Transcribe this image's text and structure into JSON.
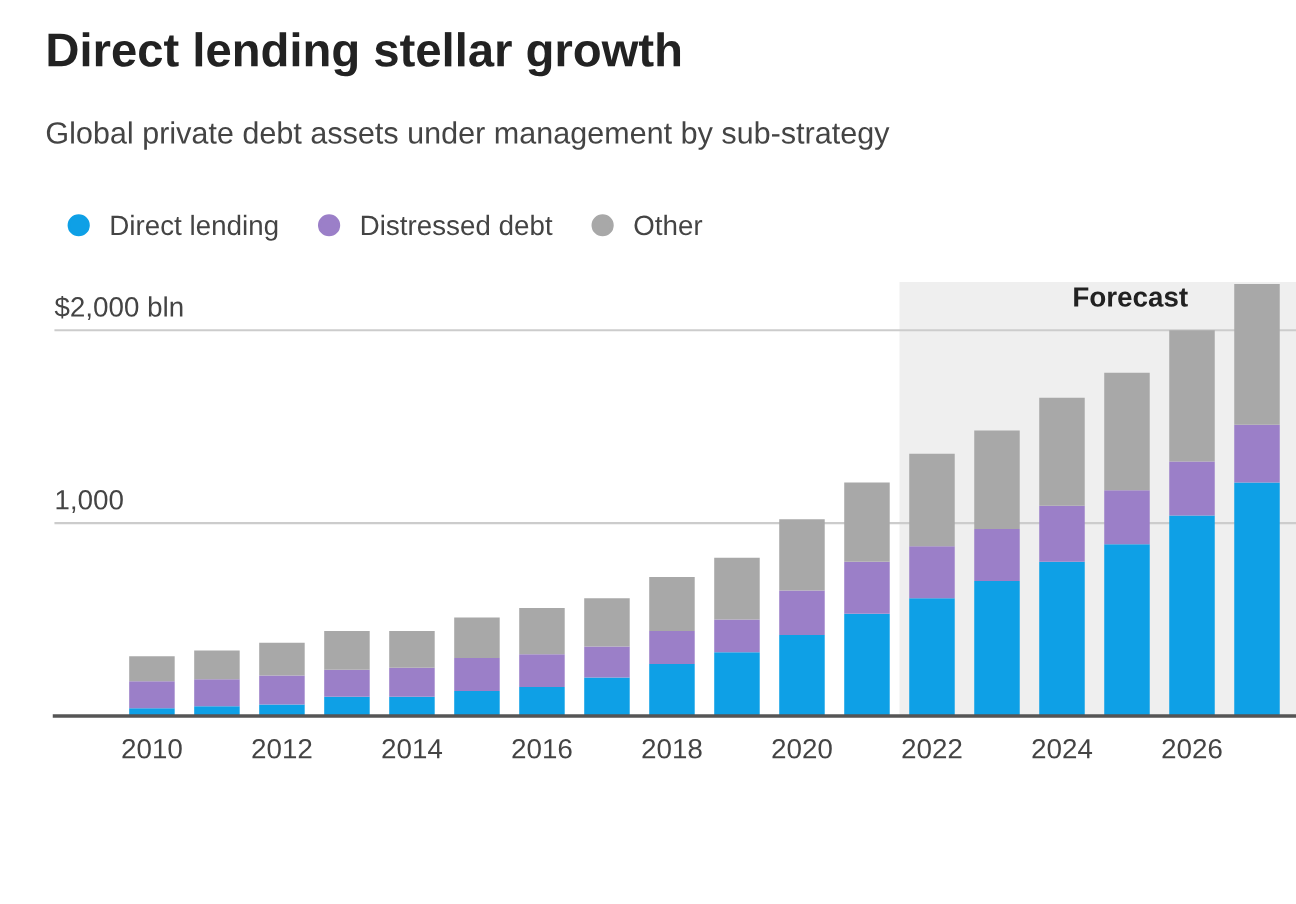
{
  "chart_data": {
    "type": "bar",
    "stacked": true,
    "title": "Direct lending stellar growth",
    "subtitle": "Global private debt assets under management by sub-strategy",
    "x": [
      2010,
      2011,
      2012,
      2013,
      2014,
      2015,
      2016,
      2017,
      2018,
      2019,
      2020,
      2021,
      2022,
      2023,
      2024,
      2025,
      2026,
      2027
    ],
    "series": [
      {
        "name": "Direct lending",
        "color": "#0ea0e6",
        "values": [
          40,
          50,
          60,
          100,
          100,
          130,
          150,
          200,
          270,
          330,
          420,
          530,
          610,
          700,
          800,
          890,
          1040,
          1210
        ]
      },
      {
        "name": "Distressed debt",
        "color": "#9b7fc8",
        "values": [
          140,
          140,
          150,
          140,
          150,
          170,
          170,
          160,
          170,
          170,
          230,
          270,
          270,
          270,
          290,
          280,
          280,
          300
        ]
      },
      {
        "name": "Other",
        "color": "#a8a8a8",
        "values": [
          130,
          150,
          170,
          200,
          190,
          210,
          240,
          250,
          280,
          320,
          370,
          410,
          480,
          510,
          560,
          610,
          680,
          730
        ]
      }
    ],
    "xlim": [
      2008.5,
      2027.6
    ],
    "xticks": [
      2010,
      2012,
      2014,
      2016,
      2018,
      2020,
      2022,
      2024,
      2026
    ],
    "ylim": [
      0,
      2250
    ],
    "yticks": [
      {
        "value": 1000,
        "label": "1,000"
      },
      {
        "value": 2000,
        "label": "$2,000 bln"
      }
    ],
    "bands": [
      {
        "axis": "x",
        "from": 2021.5,
        "to": 2027.6,
        "label": "Forecast",
        "color": "#efefef"
      }
    ],
    "grid": "y",
    "legend": "top left"
  }
}
